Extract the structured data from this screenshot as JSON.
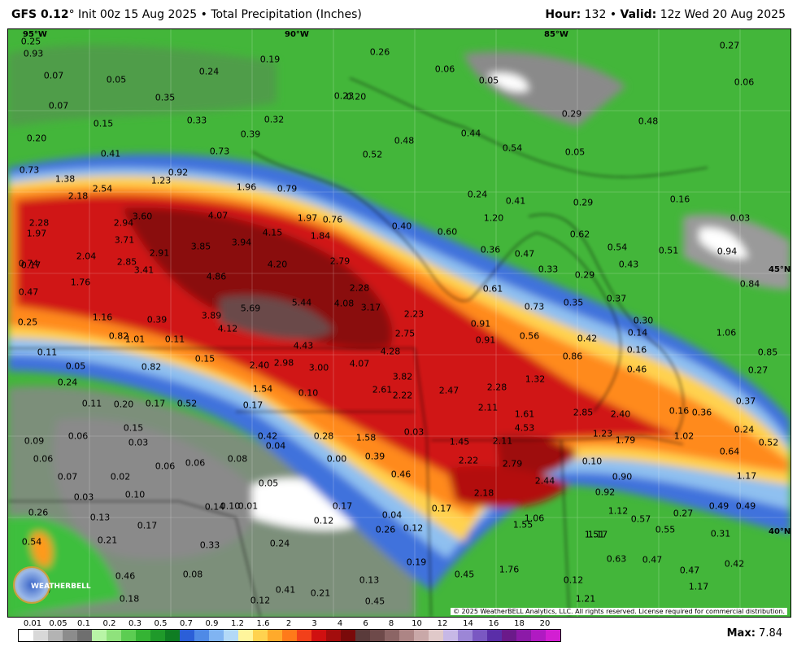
{
  "header": {
    "model": "GFS 0.12",
    "degree": "°",
    "init": "Init 00z 15 Aug 2025",
    "bullet": "•",
    "product": "Total Precipitation (Inches)",
    "hour_label": "Hour:",
    "hour": "132",
    "valid_label": "Valid:",
    "valid": "12z Wed 20 Aug 2025"
  },
  "coords": [
    "95°W",
    "90°W",
    "85°W",
    "45°N",
    "40°N"
  ],
  "values": [
    "0.25",
    "0.07",
    "0.05",
    "0.07",
    "0.15",
    "0.20",
    "0.41",
    "0.73",
    "1.38",
    "2.18",
    "2.54",
    "2.28",
    "1.97",
    "0.74",
    "0.47",
    "2.04",
    "1.76",
    "2.94",
    "3.60",
    "3.71",
    "2.85",
    "3.41",
    "2.91",
    "4.07",
    "3.85",
    "3.94",
    "4.86",
    "4.15",
    "4.20",
    "5.69",
    "3.89",
    "4.12",
    "5.44",
    "4.08",
    "3.17",
    "4.43",
    "2.98",
    "3.00",
    "2.40",
    "4.07",
    "4.28",
    "3.82",
    "2.61",
    "2.22",
    "2.47",
    "2.23",
    "2.75",
    "2.28",
    "2.11",
    "1.61",
    "4.53",
    "2.85",
    "2.40",
    "1.23",
    "1.79",
    "1.02",
    "1.45",
    "2.11",
    "2.22",
    "2.79",
    "2.44",
    "2.18",
    "1.55",
    "1.06",
    "1.76",
    "1.21",
    "0.19",
    "0.24",
    "0.35",
    "0.33",
    "0.32",
    "0.39",
    "0.73",
    "0.92",
    "1.23",
    "1.96",
    "0.79",
    "1.97",
    "0.76",
    "1.84",
    "2.79",
    "2.28",
    "0.26",
    "0.23",
    "0.20",
    "0.52",
    "0.48",
    "0.06",
    "0.05",
    "0.44",
    "0.54",
    "0.29",
    "0.48",
    "0.27",
    "0.06",
    "0.05",
    "0.40",
    "0.60",
    "1.20",
    "0.24",
    "0.41",
    "0.29",
    "0.16",
    "0.03",
    "0.62",
    "0.54",
    "0.51",
    "0.43",
    "0.94",
    "0.84",
    "0.36",
    "0.47",
    "0.33",
    "0.29",
    "0.61",
    "0.73",
    "0.35",
    "0.37",
    "0.30",
    "0.14",
    "1.06",
    "0.91",
    "0.91",
    "0.56",
    "0.42",
    "0.86",
    "0.16",
    "0.46",
    "1.32",
    "0.85",
    "0.27",
    "0.37",
    "0.24",
    "0.16",
    "0.36",
    "0.52",
    "0.64",
    "1.17",
    "0.90",
    "0.92",
    "1.12",
    "0.57",
    "0.27",
    "0.49",
    "0.49",
    "0.55",
    "0.31",
    "1.17",
    "0.63",
    "0.47",
    "0.47",
    "0.42",
    "1.17",
    "1.51",
    "0.10",
    "0.25",
    "1.16",
    "0.39",
    "0.82",
    "1.01",
    "0.11",
    "0.05",
    "0.11",
    "0.24",
    "0.82",
    "0.15",
    "0.11",
    "0.20",
    "0.17",
    "0.52",
    "1.54",
    "0.10",
    "0.17",
    "0.15",
    "0.42",
    "0.28",
    "1.58",
    "0.03",
    "0.09",
    "0.06",
    "0.03",
    "0.04",
    "0.06",
    "0.07",
    "0.02",
    "0.06",
    "0.06",
    "0.08",
    "0.03",
    "0.10",
    "0.10",
    "0.05",
    "0.00",
    "0.39",
    "0.46",
    "0.26",
    "0.13",
    "0.17",
    "0.14",
    "0.17",
    "0.04",
    "0.12",
    "0.17",
    "0.54",
    "0.21",
    "0.33",
    "0.24",
    "0.12",
    "0.26",
    "0.19",
    "0.28",
    "0.46",
    "0.08",
    "0.41",
    "0.21",
    "0.13",
    "0.45",
    "0.29",
    "0.18",
    "0.12",
    "0.45",
    "0.12",
    "0.93",
    "0.01",
    "0.17"
  ],
  "legend": {
    "labels": [
      "0.01",
      "0.05",
      "0.1",
      "0.2",
      "0.3",
      "0.5",
      "0.7",
      "0.9",
      "1.2",
      "1.6",
      "2",
      "3",
      "4",
      "6",
      "8",
      "10",
      "12",
      "14",
      "16",
      "18",
      "20"
    ],
    "colors": [
      "#ffffff",
      "#d8d8d8",
      "#b3b3b3",
      "#8c8c8c",
      "#6f6f6f",
      "#b8f5a6",
      "#8fe27c",
      "#5ccd52",
      "#35b434",
      "#1f9a2a",
      "#0f7d23",
      "#2b5fd8",
      "#4f8ae6",
      "#80b4f2",
      "#b3d9f7",
      "#fff59c",
      "#ffd24f",
      "#ffaa2b",
      "#ff7a1a",
      "#f2401a",
      "#d01010",
      "#a30d0d",
      "#7a0a0a",
      "#5a3b3b",
      "#6e4a4a",
      "#8c6565",
      "#ad8585",
      "#c9a8a8",
      "#e0c9c9",
      "#c7b8e6",
      "#9c86d6",
      "#7a58c2",
      "#5a2ea8",
      "#6b1a8a",
      "#8c1aa8",
      "#b01ac2",
      "#d21fd2"
    ]
  },
  "copyright": "© 2025 WeatherBELL Analytics, LLC. All rights reserved. License required for commercial distribution.",
  "logo_text": "WEATHERBELL",
  "max_label": "Max:",
  "max_value": "7.84"
}
